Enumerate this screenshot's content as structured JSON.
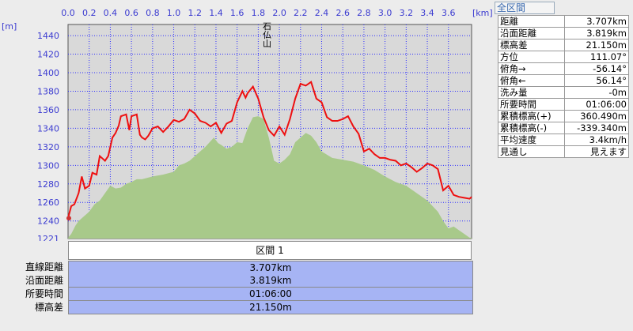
{
  "chart_data": {
    "type": "area",
    "xlabel": "",
    "ylabel": "",
    "x_unit": "[km]",
    "y_unit": "[m]",
    "x_ticks": [
      "0.0",
      "0.2",
      "0.4",
      "0.6",
      "0.8",
      "1.0",
      "1.2",
      "1.4",
      "1.6",
      "1.8",
      "2.0",
      "2.2",
      "2.4",
      "2.6",
      "2.8",
      "3.0",
      "3.2",
      "3.4",
      "3.6"
    ],
    "y_ticks": [
      "1221",
      "1240",
      "1260",
      "1280",
      "1300",
      "1320",
      "1340",
      "1360",
      "1380",
      "1400",
      "1420",
      "1440"
    ],
    "xlim": [
      0,
      3.819
    ],
    "ylim": [
      1221,
      1452
    ],
    "peak_annotation": {
      "text": "石仏山",
      "x": 1.88,
      "y": 1385
    },
    "series": [
      {
        "type": "line",
        "color": "#ee1010",
        "x": [
          0,
          0.03,
          0.06,
          0.1,
          0.13,
          0.16,
          0.2,
          0.23,
          0.27,
          0.3,
          0.35,
          0.38,
          0.42,
          0.45,
          0.48,
          0.5,
          0.55,
          0.58,
          0.6,
          0.65,
          0.68,
          0.7,
          0.73,
          0.76,
          0.8,
          0.85,
          0.9,
          0.95,
          1.0,
          1.05,
          1.1,
          1.15,
          1.2,
          1.25,
          1.3,
          1.35,
          1.4,
          1.45,
          1.5,
          1.55,
          1.6,
          1.65,
          1.68,
          1.7,
          1.75,
          1.8,
          1.85,
          1.9,
          1.95,
          2.0,
          2.05,
          2.1,
          2.15,
          2.2,
          2.25,
          2.3,
          2.35,
          2.4,
          2.45,
          2.5,
          2.55,
          2.6,
          2.65,
          2.7,
          2.75,
          2.8,
          2.85,
          2.9,
          2.95,
          3.0,
          3.05,
          3.1,
          3.15,
          3.2,
          3.25,
          3.3,
          3.35,
          3.4,
          3.45,
          3.5,
          3.55,
          3.6,
          3.65,
          3.7,
          3.75,
          3.8,
          3.819
        ],
        "values": [
          1243,
          1256,
          1258,
          1270,
          1288,
          1275,
          1278,
          1292,
          1290,
          1310,
          1305,
          1310,
          1330,
          1335,
          1343,
          1353,
          1355,
          1338,
          1353,
          1355,
          1333,
          1330,
          1328,
          1332,
          1340,
          1342,
          1336,
          1342,
          1349,
          1347,
          1350,
          1360,
          1356,
          1348,
          1346,
          1342,
          1346,
          1335,
          1345,
          1348,
          1368,
          1380,
          1373,
          1378,
          1385,
          1372,
          1352,
          1338,
          1332,
          1342,
          1333,
          1350,
          1372,
          1388,
          1386,
          1390,
          1372,
          1368,
          1352,
          1348,
          1348,
          1350,
          1353,
          1342,
          1334,
          1315,
          1318,
          1312,
          1308,
          1308,
          1306,
          1305,
          1300,
          1302,
          1298,
          1293,
          1297,
          1302,
          1300,
          1296,
          1273,
          1278,
          1268,
          1266,
          1265,
          1264,
          1266
        ],
        "values_display_note": ""
      },
      {
        "type": "area",
        "color": "#a8c98a",
        "x": [
          0,
          0.03,
          0.07,
          0.1,
          0.15,
          0.2,
          0.25,
          0.3,
          0.35,
          0.4,
          0.45,
          0.5,
          0.55,
          0.6,
          0.65,
          0.7,
          0.8,
          0.9,
          1.0,
          1.05,
          1.1,
          1.15,
          1.2,
          1.3,
          1.38,
          1.42,
          1.45,
          1.5,
          1.55,
          1.6,
          1.65,
          1.7,
          1.75,
          1.8,
          1.85,
          1.9,
          1.95,
          2.0,
          2.05,
          2.1,
          2.15,
          2.2,
          2.25,
          2.3,
          2.35,
          2.4,
          2.5,
          2.6,
          2.7,
          2.8,
          2.9,
          3.0,
          3.1,
          3.2,
          3.3,
          3.4,
          3.5,
          3.55,
          3.6,
          3.65,
          3.7,
          3.75,
          3.8,
          3.819
        ],
        "values": [
          1222,
          1226,
          1235,
          1240,
          1245,
          1250,
          1258,
          1262,
          1270,
          1278,
          1275,
          1276,
          1280,
          1282,
          1285,
          1285,
          1288,
          1290,
          1293,
          1300,
          1302,
          1305,
          1310,
          1320,
          1330,
          1324,
          1322,
          1318,
          1320,
          1325,
          1324,
          1340,
          1352,
          1353,
          1350,
          1330,
          1305,
          1302,
          1306,
          1312,
          1325,
          1330,
          1335,
          1332,
          1325,
          1315,
          1308,
          1306,
          1304,
          1300,
          1295,
          1288,
          1282,
          1278,
          1270,
          1262,
          1250,
          1240,
          1232,
          1234,
          1230,
          1226,
          1222,
          1222
        ]
      }
    ]
  },
  "section_header": "区間 1",
  "summary": [
    {
      "label": "直線距離",
      "value": "3.707km"
    },
    {
      "label": "沿面距離",
      "value": "3.819km"
    },
    {
      "label": "所要時間",
      "value": "01:06:00"
    },
    {
      "label": "標高差",
      "value": "21.150m"
    }
  ],
  "info_panel": {
    "title": "全区間",
    "rows": [
      {
        "label": "距離",
        "value": "3.707km"
      },
      {
        "label": "沿面距離",
        "value": "3.819km"
      },
      {
        "label": "標高差",
        "value": "21.150m"
      },
      {
        "label": "方位",
        "value": "111.07°"
      },
      {
        "label": "俯角→",
        "value": "-56.14°"
      },
      {
        "label": "俯角←",
        "value": "56.14°"
      },
      {
        "label": "洗み量",
        "value": "-0m"
      },
      {
        "label": "所要時間",
        "value": "01:06:00"
      },
      {
        "label": "累積標高(+)",
        "value": "360.490m"
      },
      {
        "label": "累積標高(-)",
        "value": "-339.340m"
      },
      {
        "label": "平均速度",
        "value": "3.4km/h"
      },
      {
        "label": "見通し",
        "value": "見えます"
      }
    ]
  },
  "colors": {
    "plot_bg": "#d9d9d9",
    "grid": "#2f2fff",
    "profile_line": "#ee1010",
    "terrain": "#a8c98a",
    "summary_bg": "#a6b4f4"
  },
  "icons": {
    "start_marker": "person-marker-icon"
  }
}
